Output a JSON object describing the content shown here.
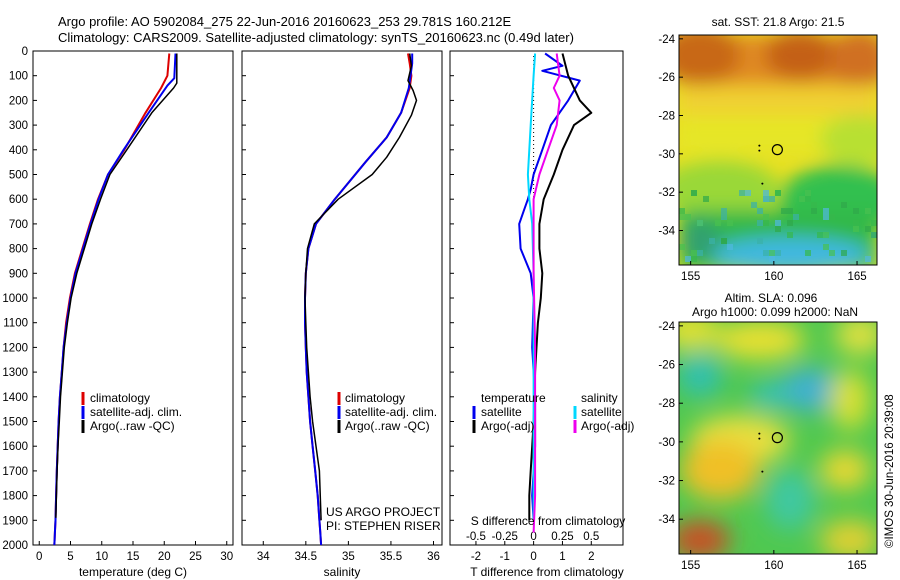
{
  "header": {
    "line1": "Argo profile: AO 5902084_275 22-Jun-2016 20160623_253 29.781S 160.212E",
    "line2": "Climatology: CARS2009. Satellite-adjusted climatology: synTS_20160623.nc (0.49d later)"
  },
  "credits": {
    "project": "US ARGO PROJECT",
    "pi": "PI: STEPHEN RISER"
  },
  "side_note": "©IMOS 30-Jun-2016 20:39:08",
  "colors": {
    "climatology": "#dd0000",
    "satellite": "#0000ee",
    "argo": "#000000",
    "cyan": "#00d8ff",
    "magenta": "#ee00ee"
  },
  "chart_data": [
    {
      "type": "line",
      "panel": "temperature",
      "xlabel": "temperature (deg C)",
      "ylabel": "",
      "xlim": [
        -1,
        31
      ],
      "ylim": [
        2000,
        0
      ],
      "xticks": [
        0,
        5,
        10,
        15,
        20,
        25,
        30
      ],
      "yticks": [
        0,
        100,
        200,
        300,
        400,
        500,
        600,
        700,
        800,
        900,
        1000,
        1100,
        1200,
        1300,
        1400,
        1500,
        1600,
        1700,
        1800,
        1900,
        2000
      ],
      "legend": [
        "climatology",
        "satellite-adj. clim.",
        "Argo(..raw -QC)"
      ],
      "series": [
        {
          "name": "climatology",
          "color": "#dd0000",
          "width": 2,
          "x": [
            20.8,
            20.5,
            19.5,
            17.0,
            13.6,
            11.0,
            9.4,
            8.1,
            6.9,
            5.7,
            4.9,
            4.3,
            3.9,
            3.6,
            3.3,
            3.1,
            2.95,
            2.8,
            2.7,
            2.6,
            2.5,
            2.45,
            2.4
          ],
          "y": [
            10,
            100,
            150,
            250,
            400,
            500,
            600,
            700,
            800,
            900,
            1000,
            1100,
            1200,
            1300,
            1400,
            1500,
            1600,
            1700,
            1800,
            1900,
            1950,
            1980,
            2000
          ]
        },
        {
          "name": "satellite-adj. clim.",
          "color": "#0000ee",
          "width": 2,
          "x": [
            21.8,
            21.6,
            20.5,
            17.5,
            13.5,
            11.0,
            9.5,
            8.2,
            7.0,
            5.8,
            5.0,
            4.4,
            3.9,
            3.6,
            3.3,
            3.1,
            2.95,
            2.8,
            2.7,
            2.6,
            2.5,
            2.45,
            2.4
          ],
          "y": [
            10,
            110,
            140,
            250,
            400,
            500,
            600,
            700,
            800,
            900,
            1000,
            1100,
            1200,
            1300,
            1400,
            1500,
            1600,
            1700,
            1800,
            1900,
            1950,
            1980,
            2000
          ]
        },
        {
          "name": "Argo(..raw -QC)",
          "color": "#000000",
          "width": 1.5,
          "x": [
            22.0,
            22.0,
            21.5,
            18.0,
            14.0,
            11.3,
            9.8,
            8.4,
            7.2,
            6.0,
            5.1,
            4.5,
            4.0,
            3.7,
            3.4,
            3.2,
            3.0,
            2.85,
            2.75,
            2.65
          ],
          "y": [
            10,
            130,
            150,
            250,
            400,
            500,
            600,
            700,
            800,
            900,
            1000,
            1100,
            1200,
            1300,
            1400,
            1500,
            1600,
            1700,
            1800,
            1890
          ]
        }
      ]
    },
    {
      "type": "line",
      "panel": "salinity",
      "xlabel": "salinity",
      "ylabel": "",
      "xlim": [
        33.75,
        36.1
      ],
      "ylim": [
        2000,
        0
      ],
      "xticks": [
        34,
        34.5,
        35,
        35.5,
        36
      ],
      "legend": [
        "climatology",
        "satellite-adj. clim.",
        "Argo(..raw -QC)"
      ],
      "series": [
        {
          "name": "climatology",
          "color": "#dd0000",
          "width": 2,
          "x": [
            35.7,
            35.72,
            35.74,
            35.72,
            35.62,
            35.45,
            35.2,
            34.84,
            34.62,
            34.53,
            34.5,
            34.49,
            34.49,
            34.5,
            34.51,
            34.53,
            34.55,
            34.58,
            34.61,
            34.64,
            34.66,
            34.67,
            34.68
          ],
          "y": [
            10,
            50,
            100,
            150,
            250,
            350,
            450,
            600,
            700,
            800,
            900,
            1000,
            1100,
            1200,
            1300,
            1400,
            1500,
            1600,
            1700,
            1800,
            1900,
            1950,
            2000
          ]
        },
        {
          "name": "satellite-adj. clim.",
          "color": "#0000ee",
          "width": 2,
          "x": [
            35.75,
            35.75,
            35.73,
            35.71,
            35.62,
            35.45,
            35.2,
            34.84,
            34.62,
            34.53,
            34.5,
            34.49,
            34.49,
            34.5,
            34.51,
            34.53,
            34.55,
            34.58,
            34.61,
            34.64,
            34.66,
            34.67,
            34.68
          ],
          "y": [
            10,
            50,
            100,
            150,
            250,
            350,
            450,
            600,
            700,
            800,
            900,
            1000,
            1100,
            1200,
            1300,
            1400,
            1500,
            1600,
            1700,
            1800,
            1900,
            1950,
            2000
          ]
        },
        {
          "name": "Argo(..raw -QC)",
          "color": "#000000",
          "width": 1.5,
          "x": [
            35.72,
            35.74,
            35.7,
            35.76,
            35.8,
            35.74,
            35.6,
            35.45,
            35.28,
            34.88,
            34.6,
            34.52,
            34.5,
            34.49,
            34.5,
            34.51,
            34.53,
            34.55,
            34.58,
            34.62,
            34.66,
            34.68
          ],
          "y": [
            10,
            60,
            120,
            160,
            200,
            260,
            350,
            430,
            500,
            600,
            700,
            800,
            900,
            1000,
            1100,
            1200,
            1300,
            1400,
            1500,
            1600,
            1700,
            1900
          ]
        }
      ]
    },
    {
      "type": "line",
      "panel": "difference",
      "xlabel": "T difference from climatology",
      "xlabel2": "S difference from climatology",
      "xlim": [
        -2.9,
        3.1
      ],
      "ylim": [
        2000,
        0
      ],
      "xticks": [
        -2,
        -1,
        0,
        1,
        2
      ],
      "xticks2": [
        "-0.5",
        "-0.25",
        "0",
        "0.25",
        "0.5"
      ],
      "legend_left_title": "temperature",
      "legend_left": [
        "satellite",
        "Argo(-adj)"
      ],
      "legend_right_title": "salinity",
      "legend_right": [
        "satellite",
        "Argo(-adj)"
      ],
      "series": [
        {
          "name": "temperature satellite",
          "color": "#0000ee",
          "width": 2,
          "x": [
            0.4,
            1.0,
            0.3,
            1.6,
            1.2,
            0.6,
            0.3,
            0.0,
            -0.1,
            -0.2,
            -0.35,
            -0.5,
            -0.45,
            -0.1,
            0.0,
            -0.05,
            0.05,
            0.05,
            -0.05,
            0.0
          ],
          "y": [
            10,
            60,
            80,
            120,
            200,
            300,
            400,
            500,
            560,
            600,
            650,
            700,
            800,
            900,
            1000,
            1200,
            1400,
            1600,
            1800,
            1900
          ]
        },
        {
          "name": "temperature Argo(-adj)",
          "color": "#000000",
          "width": 2,
          "x": [
            1.0,
            1.2,
            1.6,
            2.0,
            1.4,
            1.0,
            0.7,
            0.35,
            0.2,
            0.2,
            0.3,
            0.25,
            0.15,
            0.1,
            0.05,
            0.0,
            -0.05,
            -0.1,
            -0.15,
            -0.15
          ],
          "y": [
            10,
            100,
            200,
            250,
            300,
            400,
            500,
            600,
            700,
            800,
            900,
            1000,
            1100,
            1200,
            1300,
            1500,
            1600,
            1700,
            1800,
            1900
          ]
        },
        {
          "name": "salinity satellite",
          "color": "#00d8ff",
          "width": 2,
          "x": [
            0.05,
            0.0,
            -0.1,
            -0.2,
            -0.15,
            -0.05,
            0.0,
            0.0,
            0.0,
            0.0
          ],
          "y": [
            10,
            100,
            300,
            500,
            600,
            700,
            900,
            1200,
            1600,
            1900
          ]
        },
        {
          "name": "salinity Argo(-adj)",
          "color": "#ee00ee",
          "width": 2,
          "x": [
            0.8,
            0.9,
            0.7,
            0.9,
            0.8,
            0.5,
            0.2,
            0.0,
            0.0,
            0.0,
            0.05,
            0.05,
            0.05,
            0.0
          ],
          "y": [
            10,
            100,
            150,
            200,
            300,
            400,
            500,
            600,
            700,
            900,
            1200,
            1500,
            1800,
            1950
          ]
        }
      ]
    },
    {
      "type": "heatmap",
      "panel": "sst-map",
      "title": "sat. SST: 21.8  Argo: 21.5",
      "xticks": [
        155,
        160,
        165
      ],
      "yticks": [
        -24,
        -26,
        -28,
        -30,
        -32,
        -34
      ],
      "xlim": [
        154.3,
        166.2
      ],
      "ylim": [
        -35.8,
        -23.8
      ],
      "marker": {
        "lon": 160.212,
        "lat": -29.781
      }
    },
    {
      "type": "heatmap",
      "panel": "sla-map",
      "title": "Altim. SLA: 0.096",
      "subtitle": "Argo h1000: 0.099 h2000: NaN",
      "xticks": [
        155,
        160,
        165
      ],
      "yticks": [
        -24,
        -26,
        -28,
        -30,
        -32,
        -34
      ],
      "xlim": [
        154.3,
        166.2
      ],
      "ylim": [
        -35.8,
        -23.8
      ],
      "marker": {
        "lon": 160.212,
        "lat": -29.781
      }
    }
  ]
}
